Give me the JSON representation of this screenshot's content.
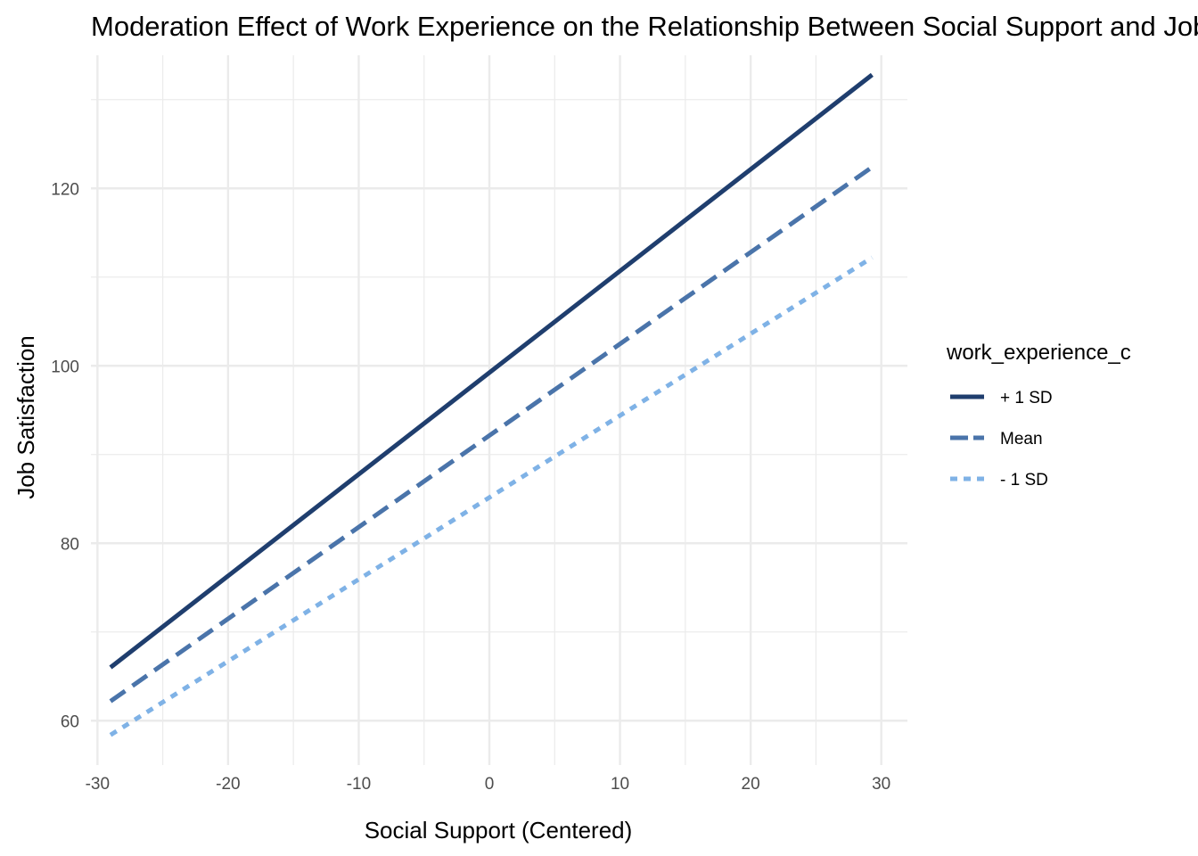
{
  "chart_data": {
    "type": "line",
    "title": "Moderation Effect of Work Experience on the Relationship Between Social Support and Job Satisfaction",
    "xlabel": "Social Support (Centered)",
    "ylabel": "Job Satisfaction",
    "xlim": [
      -30.5,
      32
    ],
    "ylim": [
      55,
      135
    ],
    "x_ticks": [
      -30,
      -20,
      -10,
      0,
      10,
      20,
      30
    ],
    "x_tick_labels": [
      "-30",
      "-20",
      "-10",
      "0",
      "10",
      "20",
      "30"
    ],
    "y_ticks": [
      60,
      80,
      100,
      120
    ],
    "y_tick_labels": [
      "60",
      "80",
      "100",
      "120"
    ],
    "x_minor_ticks": [
      -25,
      -15,
      -5,
      5,
      15,
      25
    ],
    "y_minor_ticks": [
      70,
      90,
      110,
      130
    ],
    "grid": true,
    "legend": {
      "title": "work_experience_c",
      "position": "right"
    },
    "series": [
      {
        "name": "+ 1 SD",
        "x": [
          -29,
          29.3
        ],
        "values": [
          66.0,
          132.8
        ],
        "color": "#1f3e6e",
        "dash": "solid"
      },
      {
        "name": "Mean",
        "x": [
          -29,
          29.3
        ],
        "values": [
          62.2,
          122.4
        ],
        "color": "#4a74aa",
        "dash": "dashed"
      },
      {
        "name": "- 1 SD",
        "x": [
          -29,
          29.3
        ],
        "values": [
          58.4,
          112.2
        ],
        "color": "#7fb2e6",
        "dash": "dotted"
      }
    ]
  }
}
